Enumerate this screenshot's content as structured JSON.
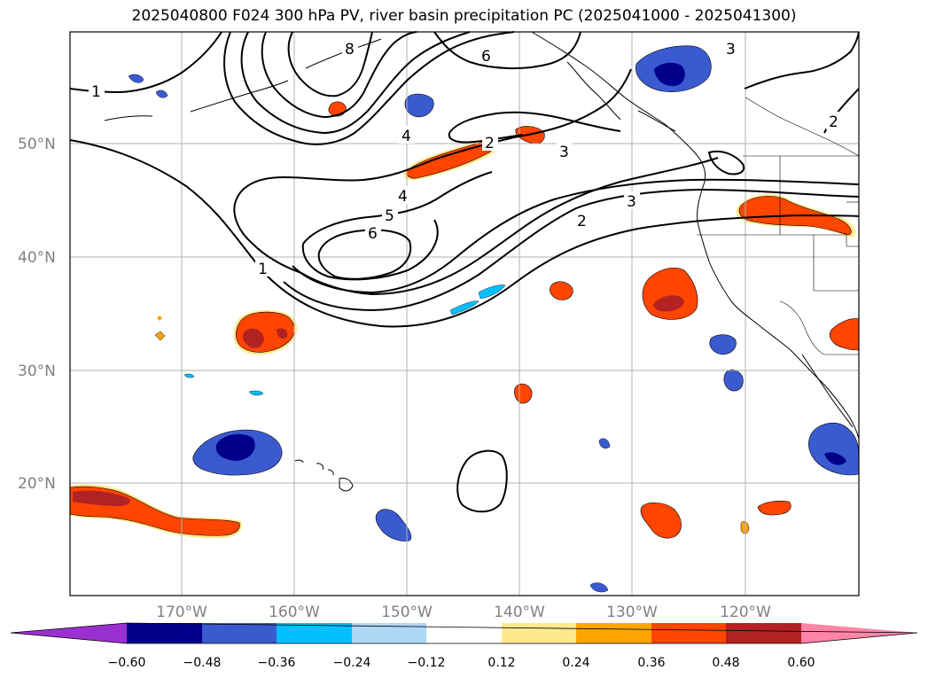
{
  "title": "2025040800 F024 300 hPa PV, river basin precipitation PC (2025041000 - 2025041300)",
  "lat_labels": [
    "50°N",
    "40°N",
    "30°N",
    "20°N"
  ],
  "lon_labels": [
    "170°W",
    "160°W",
    "150°W",
    "140°W",
    "130°W",
    "120°W"
  ],
  "colorbar": {
    "colors": [
      "#9b30d0",
      "#00008b",
      "#3a5bd0",
      "#00bfff",
      "#add8f5",
      "#ffffff",
      "#ffe98f",
      "#ffa500",
      "#ff4500",
      "#b22222",
      "#ff85a8"
    ],
    "tick_labels": [
      "−0.60",
      "−0.48",
      "−0.36",
      "−0.24",
      "−0.12",
      "0.12",
      "0.24",
      "0.36",
      "0.48",
      "0.60"
    ]
  },
  "contour_labels": [
    "1",
    "2",
    "3",
    "4",
    "5",
    "6",
    "8",
    "6",
    "3",
    "4",
    "2",
    "3",
    "2",
    "1"
  ],
  "map_extent": {
    "lon_min": -180,
    "lon_max": -110,
    "lat_min": 10,
    "lat_max": 60
  }
}
